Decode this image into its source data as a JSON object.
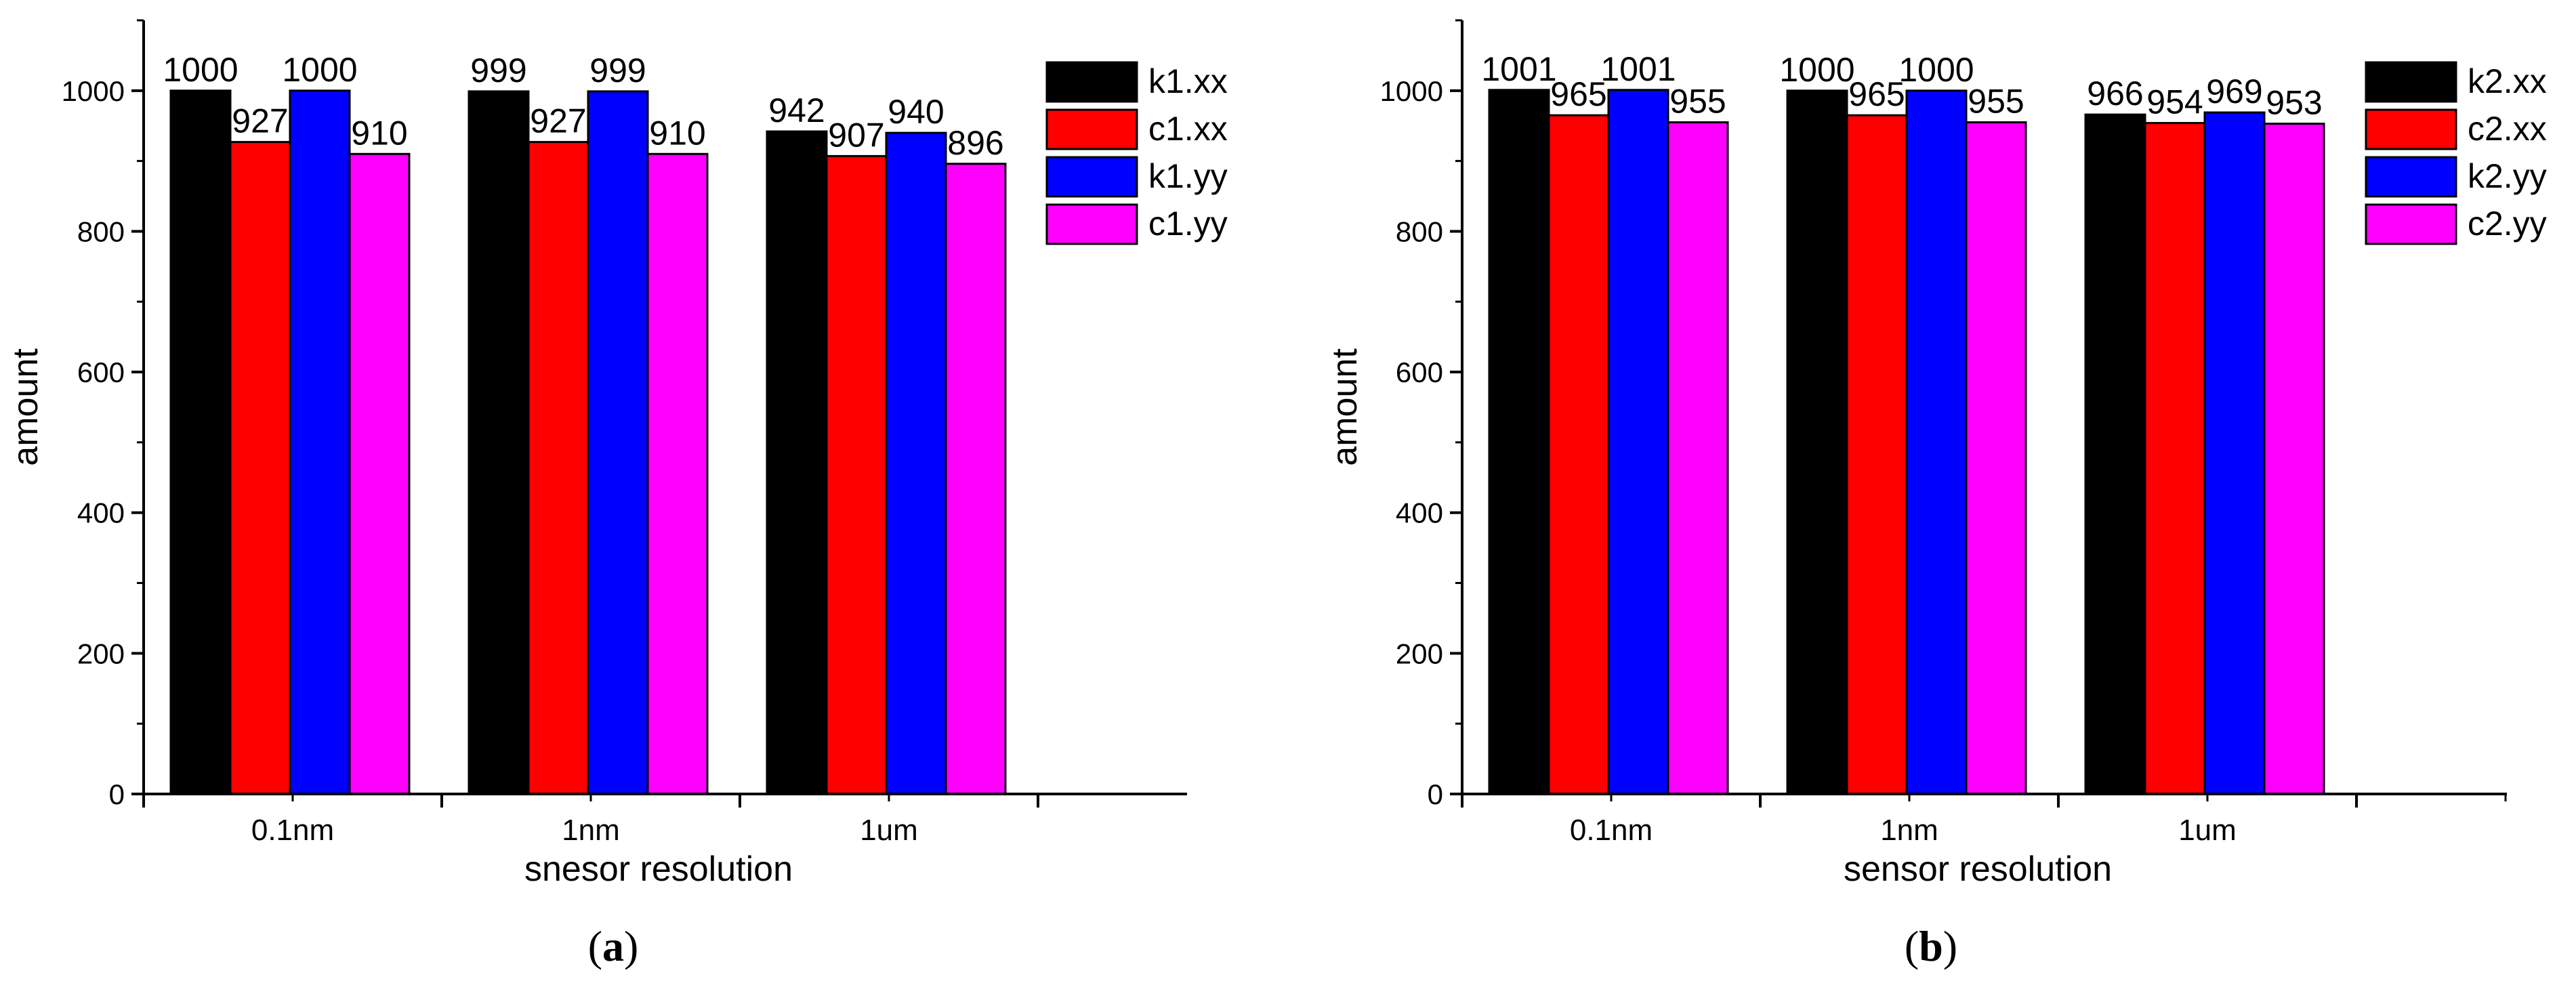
{
  "colors": {
    "axis": "#000000",
    "background": "#ffffff"
  },
  "panel_labels": [
    "a",
    "b"
  ],
  "chart_data": [
    {
      "type": "bar",
      "title": "",
      "categories": [
        "0.1nm",
        "1nm",
        "1um"
      ],
      "xlabel": "snesor resolution",
      "ylabel": "amount",
      "ylim": [
        0,
        1100
      ],
      "yticks": [
        0,
        200,
        400,
        600,
        800,
        1000
      ],
      "grid": false,
      "legend_position": "top-right",
      "series": [
        {
          "name": "k1.xx",
          "color": "#000000",
          "values": [
            1000,
            999,
            942
          ]
        },
        {
          "name": "c1.xx",
          "color": "#ff0000",
          "values": [
            927,
            927,
            907
          ]
        },
        {
          "name": "k1.yy",
          "color": "#0000ff",
          "values": [
            1000,
            999,
            940
          ]
        },
        {
          "name": "c1.yy",
          "color": "#ff00ff",
          "values": [
            910,
            910,
            896
          ]
        }
      ]
    },
    {
      "type": "bar",
      "title": "",
      "categories": [
        "0.1nm",
        "1nm",
        "1um"
      ],
      "xlabel": "sensor resolution",
      "ylabel": "amount",
      "ylim": [
        0,
        1100
      ],
      "yticks": [
        0,
        200,
        400,
        600,
        800,
        1000
      ],
      "grid": false,
      "legend_position": "top-right",
      "series": [
        {
          "name": "k2.xx",
          "color": "#000000",
          "values": [
            1001,
            1000,
            966
          ]
        },
        {
          "name": "c2.xx",
          "color": "#ff0000",
          "values": [
            965,
            965,
            954
          ]
        },
        {
          "name": "k2.yy",
          "color": "#0000ff",
          "values": [
            1001,
            1000,
            969
          ]
        },
        {
          "name": "c2.yy",
          "color": "#ff00ff",
          "values": [
            955,
            955,
            953
          ]
        }
      ]
    }
  ]
}
